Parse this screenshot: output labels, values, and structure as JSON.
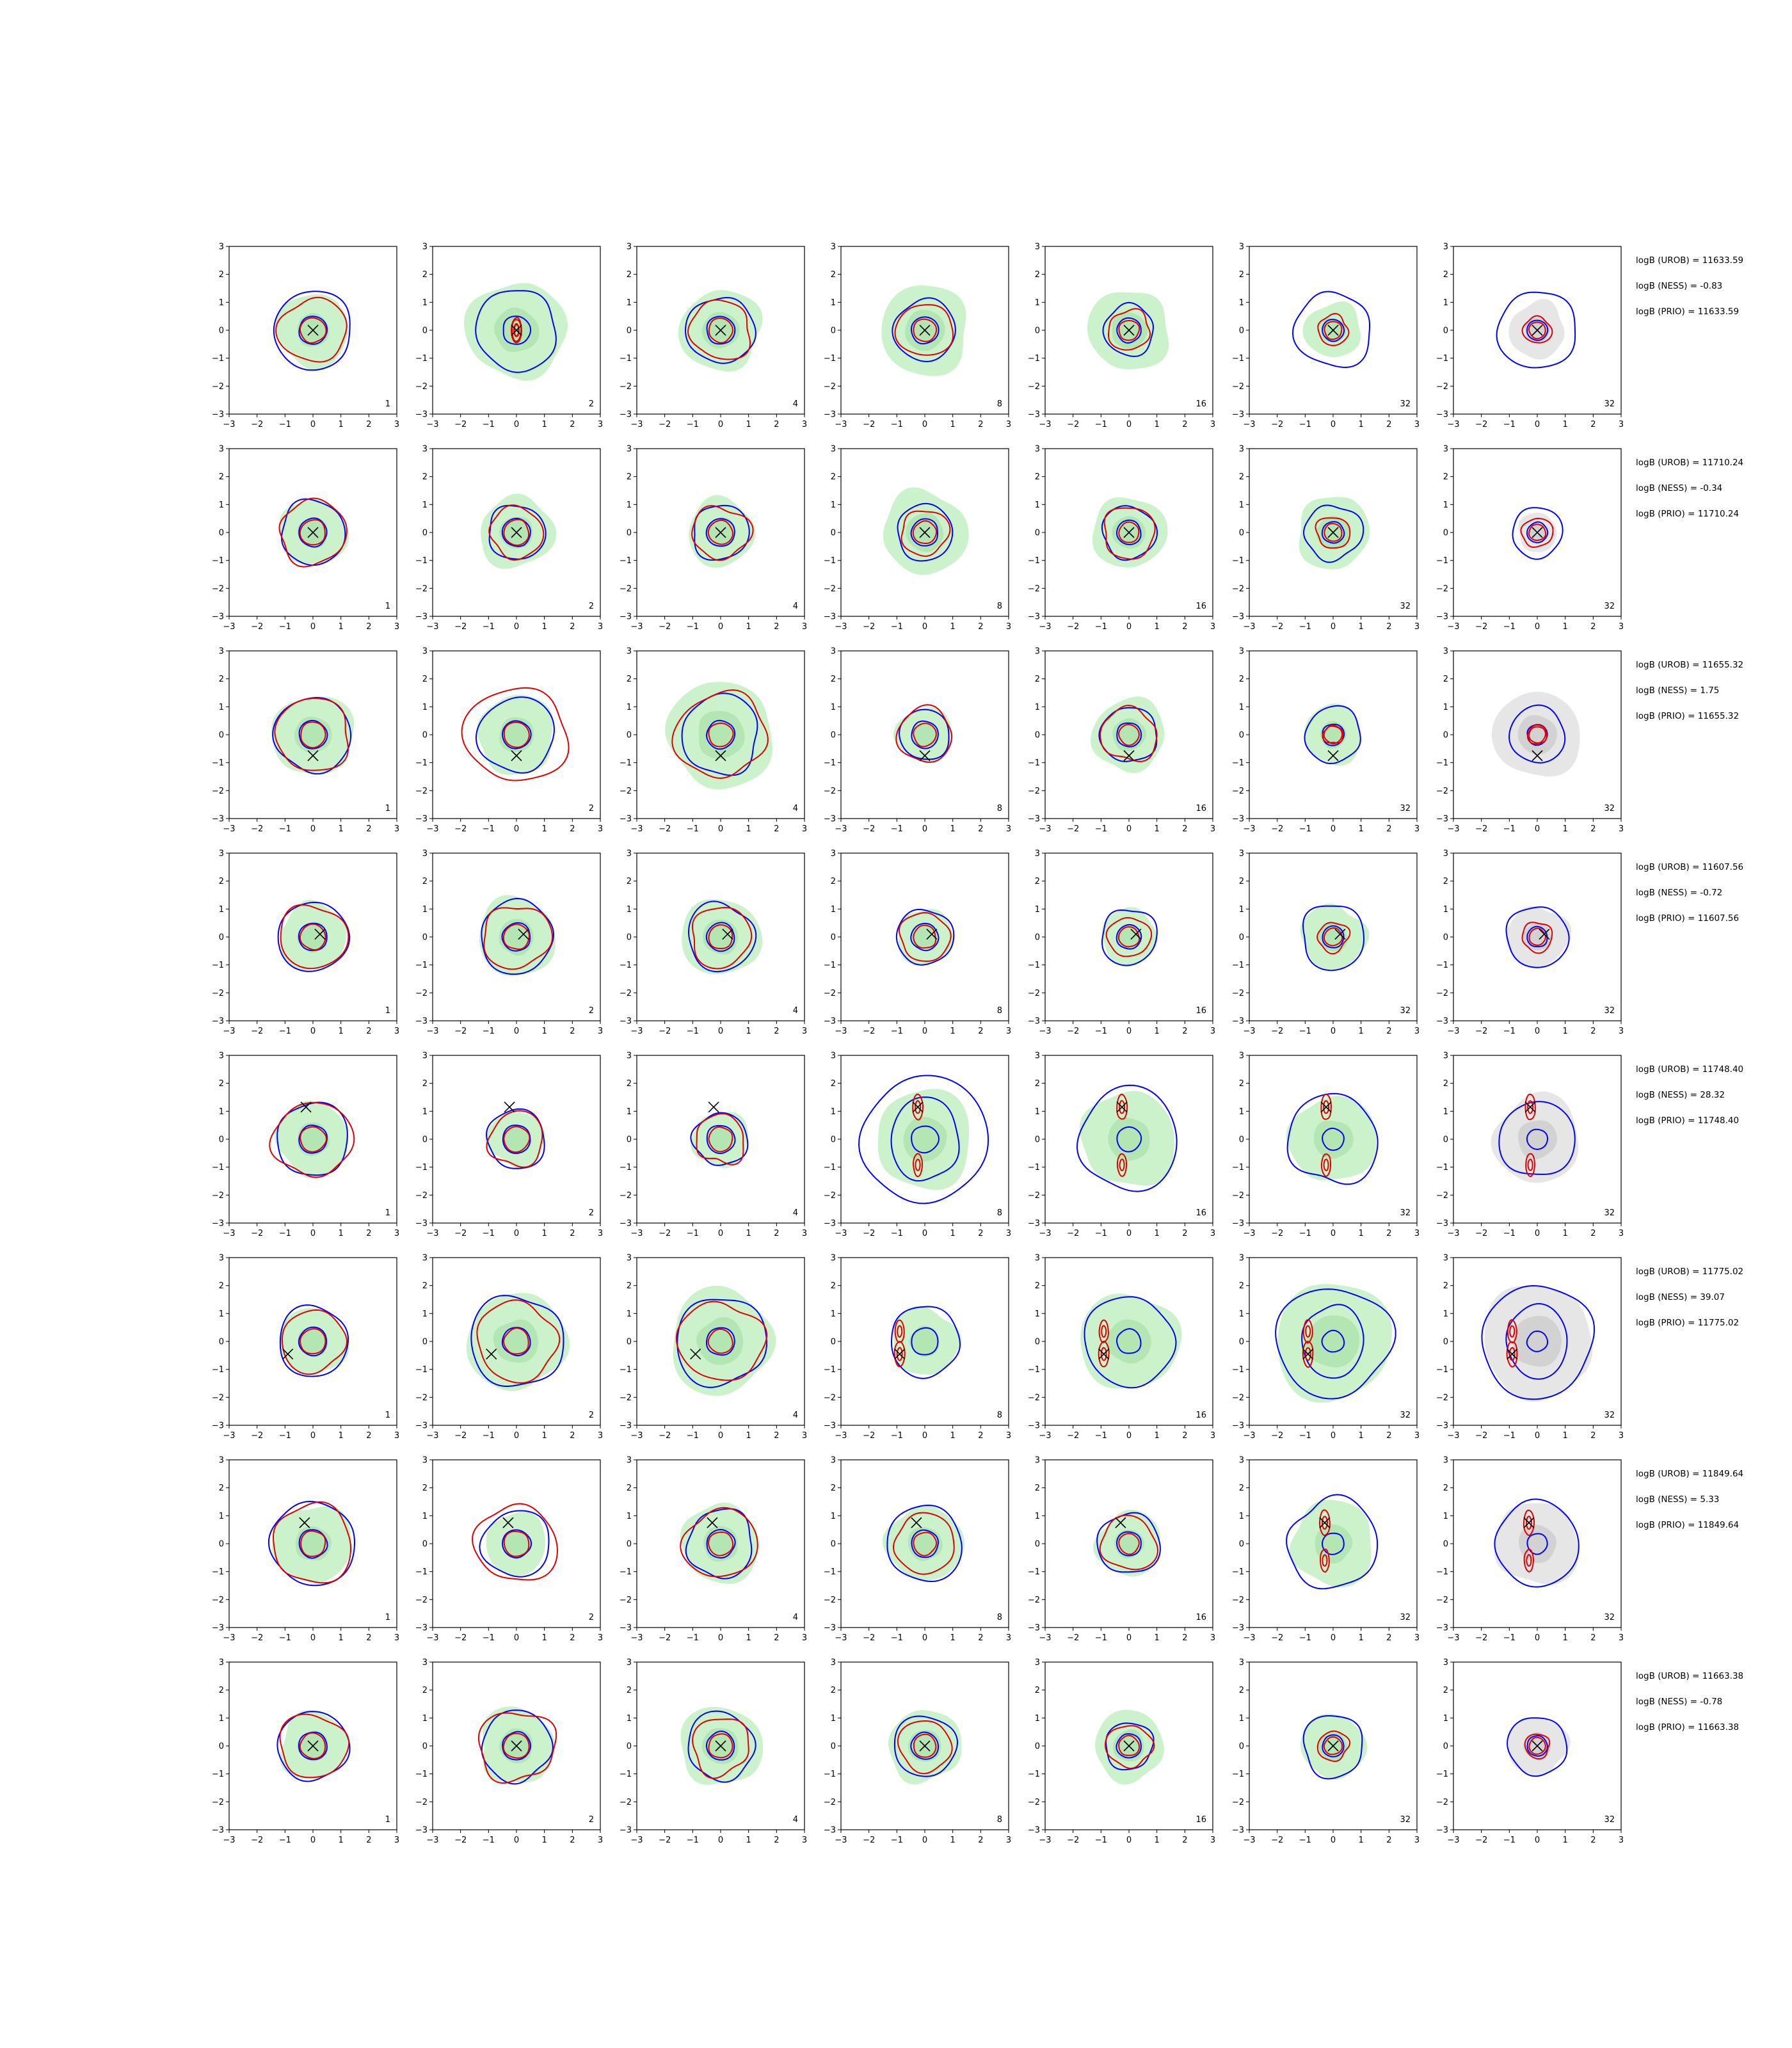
{
  "chart_data": {
    "type": "contour-grid",
    "rows": 8,
    "columns": 7,
    "xlim": [
      -3,
      3
    ],
    "ylim": [
      -3,
      3
    ],
    "tick_values": [
      -3,
      -2,
      -1,
      0,
      1,
      2,
      3
    ],
    "tick_labels": [
      "−3",
      "−2",
      "−1",
      "0",
      "1",
      "2",
      "3"
    ],
    "column_labels": [
      "1",
      "2",
      "4",
      "8",
      "16",
      "32",
      "32"
    ],
    "colors": {
      "blue_contour": "#0000ff",
      "red_contour": "#e00000",
      "green_fill": "#ccf2cc",
      "green_fill_dark": "#b3e6b3",
      "grey_fill": "#e6e6e6",
      "grey_fill_dark": "#d2d2d2",
      "marker": "#000000"
    },
    "panels": [
      {
        "marker": [
          0.0,
          0.0
        ],
        "stats": [
          "logB (UROB) = 11633.59",
          "logB (NESS) = -0.83",
          "logB (PRIO) = 11633.59"
        ]
      },
      {
        "marker": [
          0.0,
          0.0
        ],
        "stats": [
          "logB (UROB) = 11710.24",
          "logB (NESS) = -0.34",
          "logB (PRIO) = 11710.24"
        ]
      },
      {
        "marker": [
          0.0,
          -0.75
        ],
        "stats": [
          "logB (UROB) = 11655.32",
          "logB (NESS) = 1.75",
          "logB (PRIO) = 11655.32"
        ]
      },
      {
        "marker": [
          0.25,
          0.1
        ],
        "stats": [
          "logB (UROB) = 11607.56",
          "logB (NESS) = -0.72",
          "logB (PRIO) = 11607.56"
        ]
      },
      {
        "marker": [
          -0.25,
          1.15
        ],
        "stats": [
          "logB (UROB) = 11748.40",
          "logB (NESS) = 28.32",
          "logB (PRIO) = 11748.40"
        ]
      },
      {
        "marker": [
          -0.9,
          -0.45
        ],
        "stats": [
          "logB (UROB) = 11775.02",
          "logB (NESS) = 39.07",
          "logB (PRIO) = 11775.02"
        ]
      },
      {
        "marker": [
          -0.3,
          0.75
        ],
        "stats": [
          "logB (UROB) = 11849.64",
          "logB (NESS) = 5.33",
          "logB (PRIO) = 11849.64"
        ]
      },
      {
        "marker": [
          0.0,
          0.0
        ],
        "stats": [
          "logB (UROB) = 11663.38",
          "logB (NESS) = -0.78",
          "logB (PRIO) = 11663.38"
        ]
      }
    ]
  }
}
